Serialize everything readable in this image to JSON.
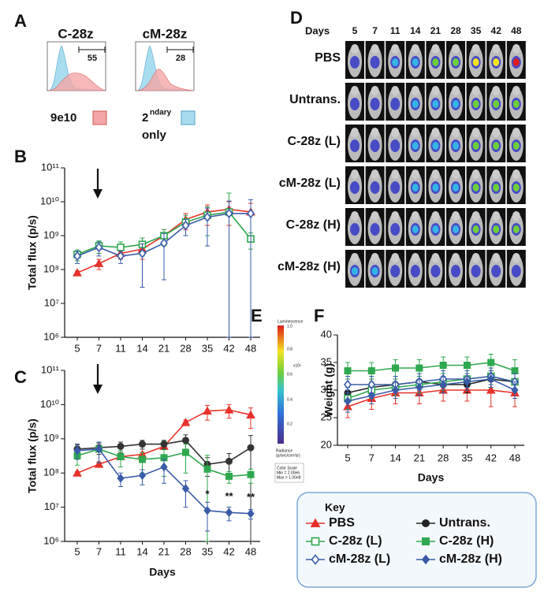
{
  "panel_labels": [
    "A",
    "B",
    "C",
    "D",
    "E",
    "F"
  ],
  "histograms": {
    "titles": [
      {
        "text": "C-28z",
        "color": "#2fa84f"
      },
      {
        "text": "cM-28z",
        "color": "#3a5ba8"
      }
    ],
    "gates": [
      "55",
      "28"
    ],
    "legend": {
      "stained": "9e10",
      "stained_color": "#f4a6a6",
      "control_base": "2",
      "control_sup": "ndary",
      "control_rest": "only",
      "control_color": "#a8dcef"
    }
  },
  "imaging": {
    "days_label": "Days",
    "days": [
      "5",
      "7",
      "11",
      "14",
      "21",
      "28",
      "35",
      "42",
      "48"
    ],
    "rows": [
      {
        "label": "PBS",
        "color": "#e8312a"
      },
      {
        "label": "Untrans.",
        "color": "#111111"
      },
      {
        "label": "C-28z (L)",
        "color": "#2fa84f"
      },
      {
        "label": "cM-28z (L)",
        "color": "#3a5ba8"
      },
      {
        "label": "C-28z (H)",
        "color": "#2fa84f"
      },
      {
        "label": "cM-28z (H)",
        "color": "#3a5ba8"
      }
    ]
  },
  "color_scale": {
    "title": "Luminescence",
    "ticks": [
      "1.0",
      "0.8",
      "0.6",
      "0.4",
      "0.2"
    ],
    "multiplier": "x10⁸",
    "unit_1": "Radiance",
    "unit_2": "(p/sec/cm²/sr)",
    "box_1": "Color Scale",
    "box_2": "Min = 2.00e6",
    "box_3": "Max = 1.00e8"
  },
  "key": {
    "title": "Key"
  },
  "chart_data": [
    {
      "type": "line",
      "y_label": "Total flux (p/s)",
      "log_y": true,
      "categories": [
        "5",
        "7",
        "11",
        "14",
        "21",
        "28",
        "35",
        "42",
        "48"
      ],
      "ylim": [
        1000000,
        100000000000
      ],
      "yticks": [
        {
          "value": 1000000,
          "label": "10⁶"
        },
        {
          "value": 10000000,
          "label": "10⁷"
        },
        {
          "value": 100000000,
          "label": "10⁸"
        },
        {
          "value": 1000000000,
          "label": "10⁹"
        },
        {
          "value": 10000000000,
          "label": "10¹⁰"
        },
        {
          "value": 100000000000,
          "label": "10¹¹"
        }
      ],
      "series": [
        {
          "name": "PBS",
          "color": "#e8312a",
          "marker": "triangle",
          "values": [
            80000000,
            150000000,
            300000000,
            400000000,
            1000000000,
            3000000000,
            5000000000,
            6000000000,
            5000000000
          ],
          "errors": [
            10000000,
            50000000,
            100000000,
            200000000,
            500000000,
            1500000000,
            3000000000,
            4000000000,
            4000000000
          ]
        },
        {
          "name": "C-28z (L)",
          "color": "#2fa84f",
          "marker": "square-open",
          "values": [
            280000000,
            500000000,
            450000000,
            550000000,
            1000000000,
            2500000000,
            4000000000,
            5000000000,
            800000000
          ],
          "errors": [
            100000000,
            200000000,
            200000000,
            300000000,
            500000000,
            1500000000,
            3000000000,
            13000000000,
            400000000
          ]
        },
        {
          "name": "cM-28z (L)",
          "color": "#3a5ba8",
          "marker": "diamond-open",
          "values": [
            250000000,
            450000000,
            250000000,
            300000000,
            600000000,
            2000000000,
            3500000000,
            4500000000,
            4500000000
          ],
          "errors": [
            100000000,
            200000000,
            100000000,
            270000000,
            550000000,
            1000000000,
            3000000000,
            6000000000,
            7000000000
          ]
        }
      ]
    },
    {
      "type": "line",
      "y_label": "Total flux (p/s)",
      "x_label": "Days",
      "log_y": true,
      "categories": [
        "5",
        "7",
        "11",
        "14",
        "21",
        "28",
        "35",
        "42",
        "48"
      ],
      "ylim": [
        1000000,
        100000000000
      ],
      "yticks": [
        {
          "value": 1000000,
          "label": "10⁶"
        },
        {
          "value": 10000000,
          "label": "10⁷"
        },
        {
          "value": 100000000,
          "label": "10⁸"
        },
        {
          "value": 1000000000,
          "label": "10⁹"
        },
        {
          "value": 10000000000,
          "label": "10¹⁰"
        },
        {
          "value": 100000000000,
          "label": "10¹¹"
        }
      ],
      "annotations": [
        {
          "text": "*",
          "category": 6
        },
        {
          "text": "**",
          "category": 7
        },
        {
          "text": "**",
          "category": 8
        }
      ],
      "series": [
        {
          "name": "PBS",
          "color": "#e8312a",
          "marker": "triangle",
          "values": [
            100000000,
            180000000,
            300000000,
            350000000,
            600000000,
            3000000000,
            6500000000,
            7000000000,
            5000000000
          ],
          "errors": [
            10000000,
            30000000,
            50000000,
            50000000,
            100000000,
            500000000,
            3000000000,
            3000000000,
            3000000000
          ]
        },
        {
          "name": "Untrans.",
          "color": "#333333",
          "marker": "circle",
          "values": [
            500000000,
            550000000,
            600000000,
            700000000,
            700000000,
            900000000,
            180000000,
            220000000,
            550000000
          ],
          "errors": [
            200000000,
            200000000,
            200000000,
            200000000,
            200000000,
            400000000,
            100000000,
            150000000,
            700000000
          ]
        },
        {
          "name": "C-28z (H)",
          "color": "#2fa84f",
          "marker": "square",
          "values": [
            320000000,
            500000000,
            300000000,
            250000000,
            280000000,
            400000000,
            130000000,
            80000000,
            90000000
          ],
          "errors": [
            150000000,
            300000000,
            150000000,
            150000000,
            200000000,
            300000000,
            200000000,
            30000000,
            40000000
          ]
        },
        {
          "name": "cM-28z (H)",
          "color": "#3a5ba8",
          "marker": "diamond",
          "values": [
            450000000,
            500000000,
            70000000,
            85000000,
            150000000,
            35000000,
            8000000,
            7000000,
            6500000
          ],
          "errors": [
            200000000,
            300000000,
            30000000,
            40000000,
            100000000,
            25000000,
            6000000,
            3000000,
            2000000
          ]
        }
      ]
    },
    {
      "type": "line",
      "y_label": "Weight (g)",
      "x_label": "Days",
      "log_y": false,
      "categories": [
        "5",
        "7",
        "14",
        "21",
        "28",
        "35",
        "42",
        "48"
      ],
      "ylim": [
        20,
        40
      ],
      "yticks": [
        20,
        25,
        30,
        35,
        40
      ],
      "series": [
        {
          "name": "PBS",
          "color": "#e8312a",
          "marker": "triangle",
          "values": [
            27,
            28.5,
            29.5,
            29.5,
            30,
            30,
            30,
            29.5
          ],
          "errors": [
            2,
            2,
            2,
            2,
            2,
            2,
            3,
            2.5
          ]
        },
        {
          "name": "Untrans.",
          "color": "#222222",
          "marker": "circle",
          "values": [
            29.5,
            30.5,
            31,
            31.5,
            31,
            31,
            32,
            31.5
          ],
          "errors": [
            1.5,
            1.5,
            1.5,
            1.5,
            1.5,
            1.5,
            1.5,
            1.5
          ]
        },
        {
          "name": "C-28z (L)",
          "color": "#2fa84f",
          "marker": "square-open",
          "values": [
            28.5,
            30,
            30.5,
            31,
            31.5,
            32,
            32.5,
            31.5
          ],
          "errors": [
            2,
            1.5,
            1.5,
            1.5,
            1.5,
            1.5,
            1.5,
            1.5
          ]
        },
        {
          "name": "C-28z (H)",
          "color": "#2fa84f",
          "marker": "square",
          "values": [
            33.5,
            33.5,
            34,
            34,
            34.5,
            34.5,
            35,
            33.5
          ],
          "errors": [
            1.5,
            1.5,
            1.5,
            1.5,
            1.5,
            1.5,
            1.5,
            2
          ]
        },
        {
          "name": "cM-28z (L)",
          "color": "#3a5ba8",
          "marker": "diamond-open",
          "values": [
            31,
            31,
            31,
            31.5,
            32,
            32,
            32.5,
            31.5
          ],
          "errors": [
            1.5,
            1.5,
            1.5,
            1.5,
            1.5,
            1.5,
            1.5,
            1.5
          ]
        },
        {
          "name": "cM-28z (H)",
          "color": "#3a5ba8",
          "marker": "diamond",
          "values": [
            28,
            29,
            30,
            30.5,
            31,
            31.5,
            32,
            30
          ],
          "errors": [
            2,
            1.5,
            1.5,
            1.5,
            1.5,
            1.5,
            1.5,
            1.5
          ]
        }
      ]
    }
  ]
}
